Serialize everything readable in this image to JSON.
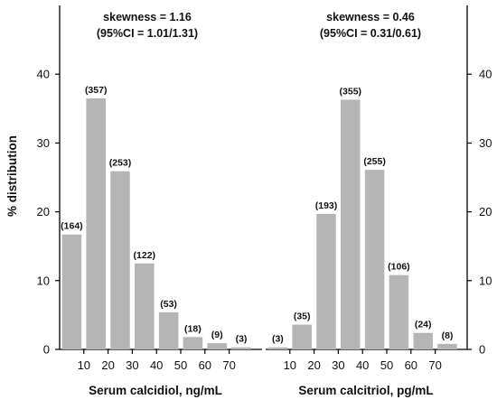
{
  "chart_data": [
    {
      "type": "bar",
      "ylabel": "% distribution",
      "xlabel": "Serum calcidiol, ng/mL",
      "annotation_line1": "skewness = 1.16",
      "annotation_line2": "(95%CI = 1.01/1.31)",
      "ylim": [
        0,
        50
      ],
      "y_ticks": [
        "0",
        "10",
        "20",
        "30",
        "40"
      ],
      "x_ticks": [
        "10",
        "20",
        "30",
        "40",
        "50",
        "60",
        "70"
      ],
      "categories": [
        "0-10",
        "10-20",
        "20-30",
        "30-40",
        "40-50",
        "50-60",
        "60-70",
        "70-80"
      ],
      "values": [
        16.7,
        36.5,
        25.9,
        12.5,
        5.4,
        1.8,
        0.9,
        0.3
      ],
      "counts": [
        "(164)",
        "(357)",
        "(253)",
        "(122)",
        "(53)",
        "(18)",
        "(9)",
        "(3)"
      ],
      "bar_color": "#b5b5b5"
    },
    {
      "type": "bar",
      "ylabel": "",
      "xlabel": "Serum calcitriol, pg/mL",
      "annotation_line1": "skewness = 0.46",
      "annotation_line2": "(95%CI = 0.31/0.61)",
      "ylim": [
        0,
        50
      ],
      "y_ticks": [
        "0",
        "10",
        "20",
        "30",
        "40"
      ],
      "x_ticks": [
        "10",
        "20",
        "30",
        "40",
        "50",
        "60",
        "70"
      ],
      "categories": [
        "0-10",
        "10-20",
        "20-30",
        "30-40",
        "40-50",
        "50-60",
        "60-70",
        "70-80"
      ],
      "values": [
        0.3,
        3.6,
        19.7,
        36.3,
        26.1,
        10.8,
        2.4,
        0.8
      ],
      "counts": [
        "(3)",
        "(35)",
        "(193)",
        "(355)",
        "(255)",
        "(106)",
        "(24)",
        "(8)"
      ],
      "bar_color": "#b5b5b5"
    }
  ]
}
